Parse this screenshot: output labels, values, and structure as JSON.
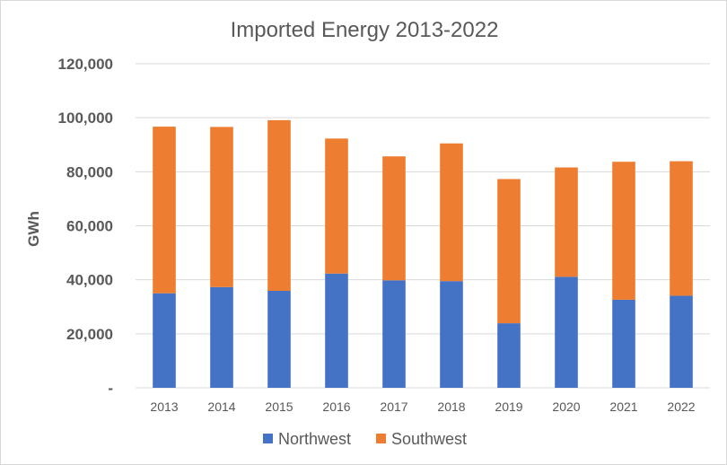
{
  "chart_data": {
    "type": "bar",
    "stacked": true,
    "title": "Imported Energy 2013-2022",
    "xlabel": "",
    "ylabel": "GWh",
    "ylim": [
      0,
      120000
    ],
    "yticks": [
      0,
      20000,
      40000,
      60000,
      80000,
      100000,
      120000
    ],
    "ytick_labels": [
      "-",
      "20,000",
      "40,000",
      "60,000",
      "80,000",
      "100,000",
      "120,000"
    ],
    "grid": true,
    "legend_position": "bottom",
    "categories": [
      "2013",
      "2014",
      "2015",
      "2016",
      "2017",
      "2018",
      "2019",
      "2020",
      "2021",
      "2022"
    ],
    "series": [
      {
        "name": "Northwest",
        "color": "#4472C4",
        "values": [
          35000,
          37300,
          35900,
          42300,
          39800,
          39500,
          23900,
          41100,
          32600,
          34100
        ]
      },
      {
        "name": "Southwest",
        "color": "#ED7D31",
        "values": [
          61700,
          59300,
          63200,
          50000,
          45900,
          51000,
          53400,
          40500,
          51100,
          49800
        ]
      }
    ]
  }
}
